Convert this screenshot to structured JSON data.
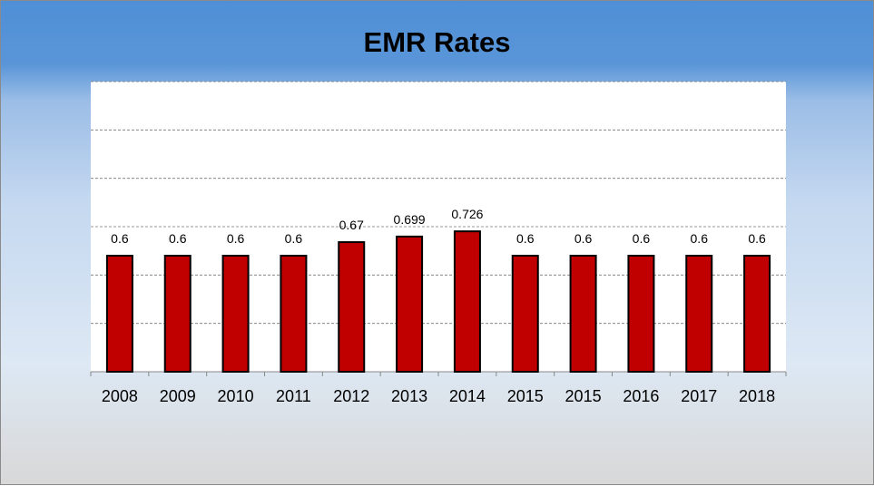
{
  "chart_data": {
    "type": "bar",
    "title": "EMR Rates",
    "categories": [
      "2008",
      "2009",
      "2010",
      "2011",
      "2012",
      "2013",
      "2014",
      "2015",
      "2015",
      "2016",
      "2017",
      "2018"
    ],
    "values": [
      0.6,
      0.6,
      0.6,
      0.6,
      0.67,
      0.699,
      0.726,
      0.6,
      0.6,
      0.6,
      0.6,
      0.6
    ],
    "data_labels": [
      "0.6",
      "0.6",
      "0.6",
      "0.6",
      "0.67",
      "0.699",
      "0.726",
      "0.6",
      "0.6",
      "0.6",
      "0.6",
      "0.6"
    ],
    "xlabel": "",
    "ylabel": "",
    "ylim": [
      0,
      1.5
    ],
    "y_gridline_step": 0.25,
    "grid": true,
    "legend": "none",
    "bar_color": "#c00000"
  }
}
